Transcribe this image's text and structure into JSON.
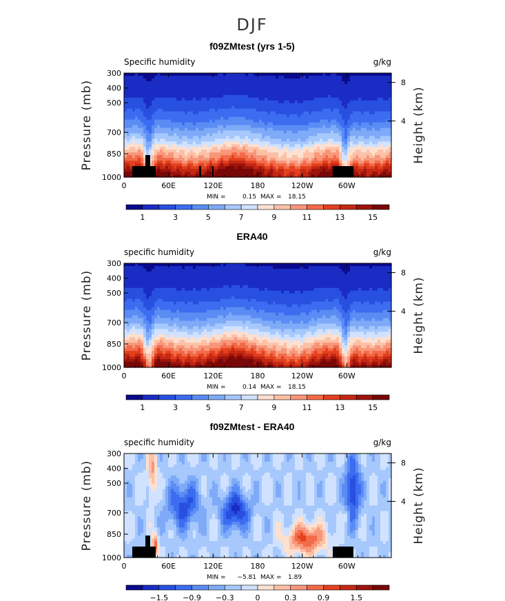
{
  "figure_title": "DJF",
  "chart_data": [
    {
      "type": "heatmap",
      "title": "f09ZMtest (yrs 1-5)",
      "left_label": "Specific humidity",
      "right_label": "g/kg",
      "ylabel": "Pressure (mb)",
      "y2label": "Height (km)",
      "yticks": [
        "300",
        "400",
        "500",
        "700",
        "850",
        "1000"
      ],
      "y2ticks": [
        "8",
        "4"
      ],
      "xticks": [
        "0",
        "60E",
        "120E",
        "180",
        "120W",
        "60W"
      ],
      "stats": {
        "min_label": "MIN =",
        "min": "0.15",
        "max_label": "MAX =",
        "max": "18.15"
      },
      "colorbar_labels": [
        "1",
        "3",
        "5",
        "7",
        "9",
        "11",
        "13",
        "15"
      ],
      "field": "full",
      "topo": true
    },
    {
      "type": "heatmap",
      "title": "ERA40",
      "left_label": "specific humidity",
      "right_label": "g/kg",
      "ylabel": "Pressure (mb)",
      "y2label": "Height (km)",
      "yticks": [
        "300",
        "400",
        "500",
        "700",
        "850",
        "1000"
      ],
      "y2ticks": [
        "8",
        "4"
      ],
      "xticks": [
        "0",
        "60E",
        "120E",
        "180",
        "120W",
        "60W"
      ],
      "stats": {
        "min_label": "MIN =",
        "min": "0.14",
        "max_label": "MAX =",
        "max": "18.15"
      },
      "colorbar_labels": [
        "1",
        "3",
        "5",
        "7",
        "9",
        "11",
        "13",
        "15"
      ],
      "field": "full",
      "topo": false
    },
    {
      "type": "heatmap",
      "title": "f09ZMtest - ERA40",
      "left_label": "specific humidity",
      "right_label": "g/kg",
      "ylabel": "Pressure (mb)",
      "y2label": "Height (km)",
      "yticks": [
        "300",
        "400",
        "500",
        "700",
        "850",
        "1000"
      ],
      "y2ticks": [
        "8",
        "4"
      ],
      "xticks": [
        "0",
        "60E",
        "120E",
        "180",
        "120W",
        "60W"
      ],
      "stats": {
        "min_label": "MIN =",
        "min": "−5.81",
        "max_label": "MAX =",
        "max": "1.89"
      },
      "colorbar_labels": [
        "−1.5",
        "−0.9",
        "−0.3",
        "0",
        "0.3",
        "0.9",
        "1.5"
      ],
      "field": "diff",
      "topo": true
    }
  ],
  "palette": [
    "#0a0a8c",
    "#1a2cc4",
    "#2850e0",
    "#3c6cf0",
    "#5a8cf4",
    "#7eaaf8",
    "#a6c8fc",
    "#d0e2ff",
    "#fde0d0",
    "#fcc0a6",
    "#f8967a",
    "#f26a48",
    "#e2401e",
    "#c42814",
    "#9c140c",
    "#780808"
  ],
  "topo_color": "#000000"
}
